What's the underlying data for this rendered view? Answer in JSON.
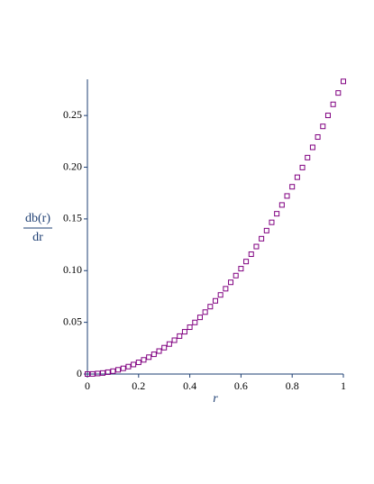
{
  "chart_data": {
    "type": "scatter",
    "x_label": "r",
    "y_label": {
      "numerator": "db(r)",
      "denominator": "dr"
    },
    "x": [
      0,
      0.02,
      0.04,
      0.06,
      0.08,
      0.1,
      0.12,
      0.14,
      0.16,
      0.18,
      0.2,
      0.22,
      0.24,
      0.26,
      0.28,
      0.3,
      0.32,
      0.34,
      0.36,
      0.38,
      0.4,
      0.42,
      0.44,
      0.46,
      0.48,
      0.5,
      0.52,
      0.54,
      0.56,
      0.58,
      0.6,
      0.62,
      0.64,
      0.66,
      0.68,
      0.7,
      0.72,
      0.74,
      0.76,
      0.78,
      0.8,
      0.82,
      0.84,
      0.86,
      0.88,
      0.9,
      0.92,
      0.94,
      0.96,
      0.98,
      1
    ],
    "series": [
      {
        "color": "#800080",
        "values": [
          0,
          0.0001,
          0.0005,
          0.001,
          0.0018,
          0.0028,
          0.0041,
          0.0055,
          0.0072,
          0.0092,
          0.0113,
          0.0137,
          0.0163,
          0.0191,
          0.0222,
          0.0255,
          0.029,
          0.0327,
          0.0367,
          0.0409,
          0.0453,
          0.0499,
          0.0548,
          0.0599,
          0.0652,
          0.0708,
          0.0765,
          0.0825,
          0.0887,
          0.0952,
          0.1019,
          0.1088,
          0.1159,
          0.1233,
          0.1309,
          0.1387,
          0.1467,
          0.155,
          0.1635,
          0.1722,
          0.1811,
          0.1903,
          0.1997,
          0.2093,
          0.2192,
          0.2292,
          0.2395,
          0.2501,
          0.2608,
          0.2718,
          0.283
        ]
      }
    ],
    "xlim": [
      0,
      1
    ],
    "ylim": [
      0,
      0.285
    ],
    "xticks": [
      0,
      0.2,
      0.4,
      0.6,
      0.8,
      1
    ],
    "yticks": [
      0,
      0.05,
      {
        "value": 0.1,
        "label": "0.10"
      },
      0.15,
      {
        "value": 0.2,
        "label": "0.20"
      },
      0.25
    ],
    "axis_color": "#1e3f73"
  }
}
